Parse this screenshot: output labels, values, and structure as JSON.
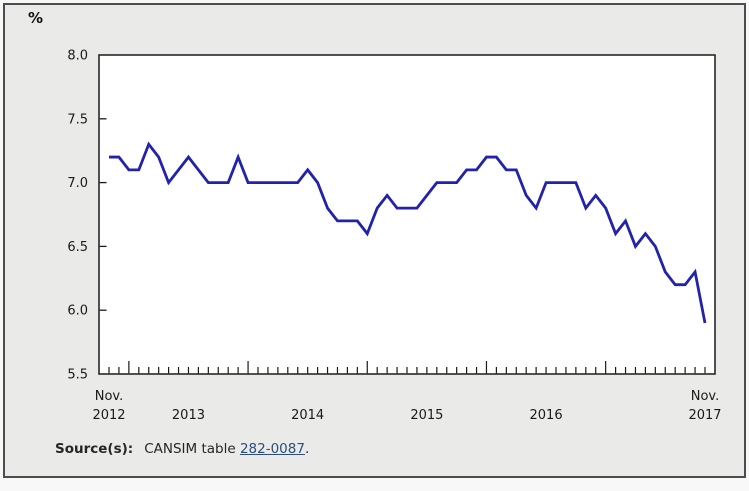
{
  "unit_label": "%",
  "chart_data": {
    "type": "line",
    "title": "",
    "ylabel": "%",
    "xlabel": "",
    "ylim": [
      5.5,
      8.0
    ],
    "y_ticks": [
      8.0,
      7.5,
      7.0,
      6.5,
      6.0,
      5.5
    ],
    "grid": false,
    "legend": "none",
    "categories": [
      "2012-11",
      "2012-12",
      "2013-01",
      "2013-02",
      "2013-03",
      "2013-04",
      "2013-05",
      "2013-06",
      "2013-07",
      "2013-08",
      "2013-09",
      "2013-10",
      "2013-11",
      "2013-12",
      "2014-01",
      "2014-02",
      "2014-03",
      "2014-04",
      "2014-05",
      "2014-06",
      "2014-07",
      "2014-08",
      "2014-09",
      "2014-10",
      "2014-11",
      "2014-12",
      "2015-01",
      "2015-02",
      "2015-03",
      "2015-04",
      "2015-05",
      "2015-06",
      "2015-07",
      "2015-08",
      "2015-09",
      "2015-10",
      "2015-11",
      "2015-12",
      "2016-01",
      "2016-02",
      "2016-03",
      "2016-04",
      "2016-05",
      "2016-06",
      "2016-07",
      "2016-08",
      "2016-09",
      "2016-10",
      "2016-11",
      "2016-12",
      "2017-01",
      "2017-02",
      "2017-03",
      "2017-04",
      "2017-05",
      "2017-06",
      "2017-07",
      "2017-08",
      "2017-09",
      "2017-10",
      "2017-11"
    ],
    "values": [
      7.2,
      7.2,
      7.1,
      7.1,
      7.3,
      7.2,
      7.0,
      7.1,
      7.2,
      7.1,
      7.0,
      7.0,
      7.0,
      7.2,
      7.0,
      7.0,
      7.0,
      7.0,
      7.0,
      7.0,
      7.1,
      7.0,
      6.8,
      6.7,
      6.7,
      6.7,
      6.6,
      6.8,
      6.9,
      6.8,
      6.8,
      6.8,
      6.9,
      7.0,
      7.0,
      7.0,
      7.1,
      7.1,
      7.2,
      7.2,
      7.1,
      7.1,
      6.9,
      6.8,
      7.0,
      7.0,
      7.0,
      7.0,
      6.8,
      6.9,
      6.8,
      6.6,
      6.7,
      6.5,
      6.6,
      6.5,
      6.3,
      6.2,
      6.2,
      6.3,
      5.9
    ],
    "x_axis_labels": [
      {
        "lines": [
          "Nov.",
          "2012"
        ],
        "month_index": 0
      },
      {
        "lines": [
          "2013"
        ],
        "month_index": 8
      },
      {
        "lines": [
          "2014"
        ],
        "month_index": 20
      },
      {
        "lines": [
          "2015"
        ],
        "month_index": 32
      },
      {
        "lines": [
          "2016"
        ],
        "month_index": 44
      },
      {
        "lines": [
          "Nov.",
          "2017"
        ],
        "month_index": 60
      }
    ],
    "january_tick_indices": [
      2,
      14,
      26,
      38,
      50
    ]
  },
  "colors": {
    "line": "#2222AA",
    "panel_background": "#EAEAE8",
    "panel_border": "#4D4D4D",
    "plot_background": "#FFFFFF",
    "axis": "#1A1A1A",
    "text": "#262626",
    "link": "#2B4E7E"
  },
  "source": {
    "label": "Source(s):",
    "text_before_link": "CANSIM table ",
    "link_text": "282-0087",
    "text_after_link": "."
  }
}
